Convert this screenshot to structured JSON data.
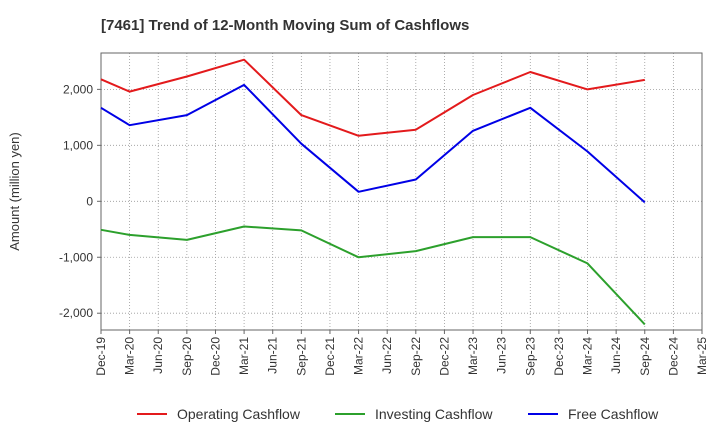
{
  "chart_data": {
    "type": "line",
    "title": "[7461]  Trend of 12-Month Moving Sum of Cashflows",
    "xlabel": "",
    "ylabel": "Amount (million yen)",
    "categories": [
      "Dec-19",
      "Mar-20",
      "Jun-20",
      "Sep-20",
      "Dec-20",
      "Mar-21",
      "Jun-21",
      "Sep-21",
      "Dec-21",
      "Mar-22",
      "Jun-22",
      "Sep-22",
      "Dec-22",
      "Mar-23",
      "Jun-23",
      "Sep-23",
      "Dec-23",
      "Mar-24",
      "Jun-24",
      "Sep-24",
      "Dec-24",
      "Mar-25"
    ],
    "ylim": [
      -2300,
      2650
    ],
    "yticks": [
      2000,
      1000,
      0,
      -1000,
      -2000
    ],
    "ytick_labels": [
      "2,000",
      "1,000",
      "0",
      "-1,000",
      "-2,000"
    ],
    "grid": true,
    "legend_position": "bottom",
    "series": [
      {
        "name": "Operating Cashflow",
        "color": "#e31a1c",
        "values": [
          2180,
          1960,
          null,
          2230,
          null,
          2530,
          null,
          1540,
          null,
          1170,
          null,
          1280,
          null,
          1900,
          null,
          2310,
          null,
          2000,
          null,
          2170,
          null,
          null
        ]
      },
      {
        "name": "Investing Cashflow",
        "color": "#2ca02c",
        "values": [
          -510,
          -600,
          null,
          -690,
          null,
          -450,
          null,
          -520,
          null,
          -1000,
          null,
          -890,
          null,
          -640,
          null,
          -640,
          null,
          -1110,
          null,
          -2200,
          null,
          null
        ]
      },
      {
        "name": "Free Cashflow",
        "color": "#0000e6",
        "values": [
          1670,
          1360,
          null,
          1540,
          null,
          2080,
          null,
          1030,
          null,
          170,
          null,
          390,
          null,
          1260,
          null,
          1670,
          null,
          890,
          null,
          -20,
          null,
          null
        ]
      }
    ]
  }
}
